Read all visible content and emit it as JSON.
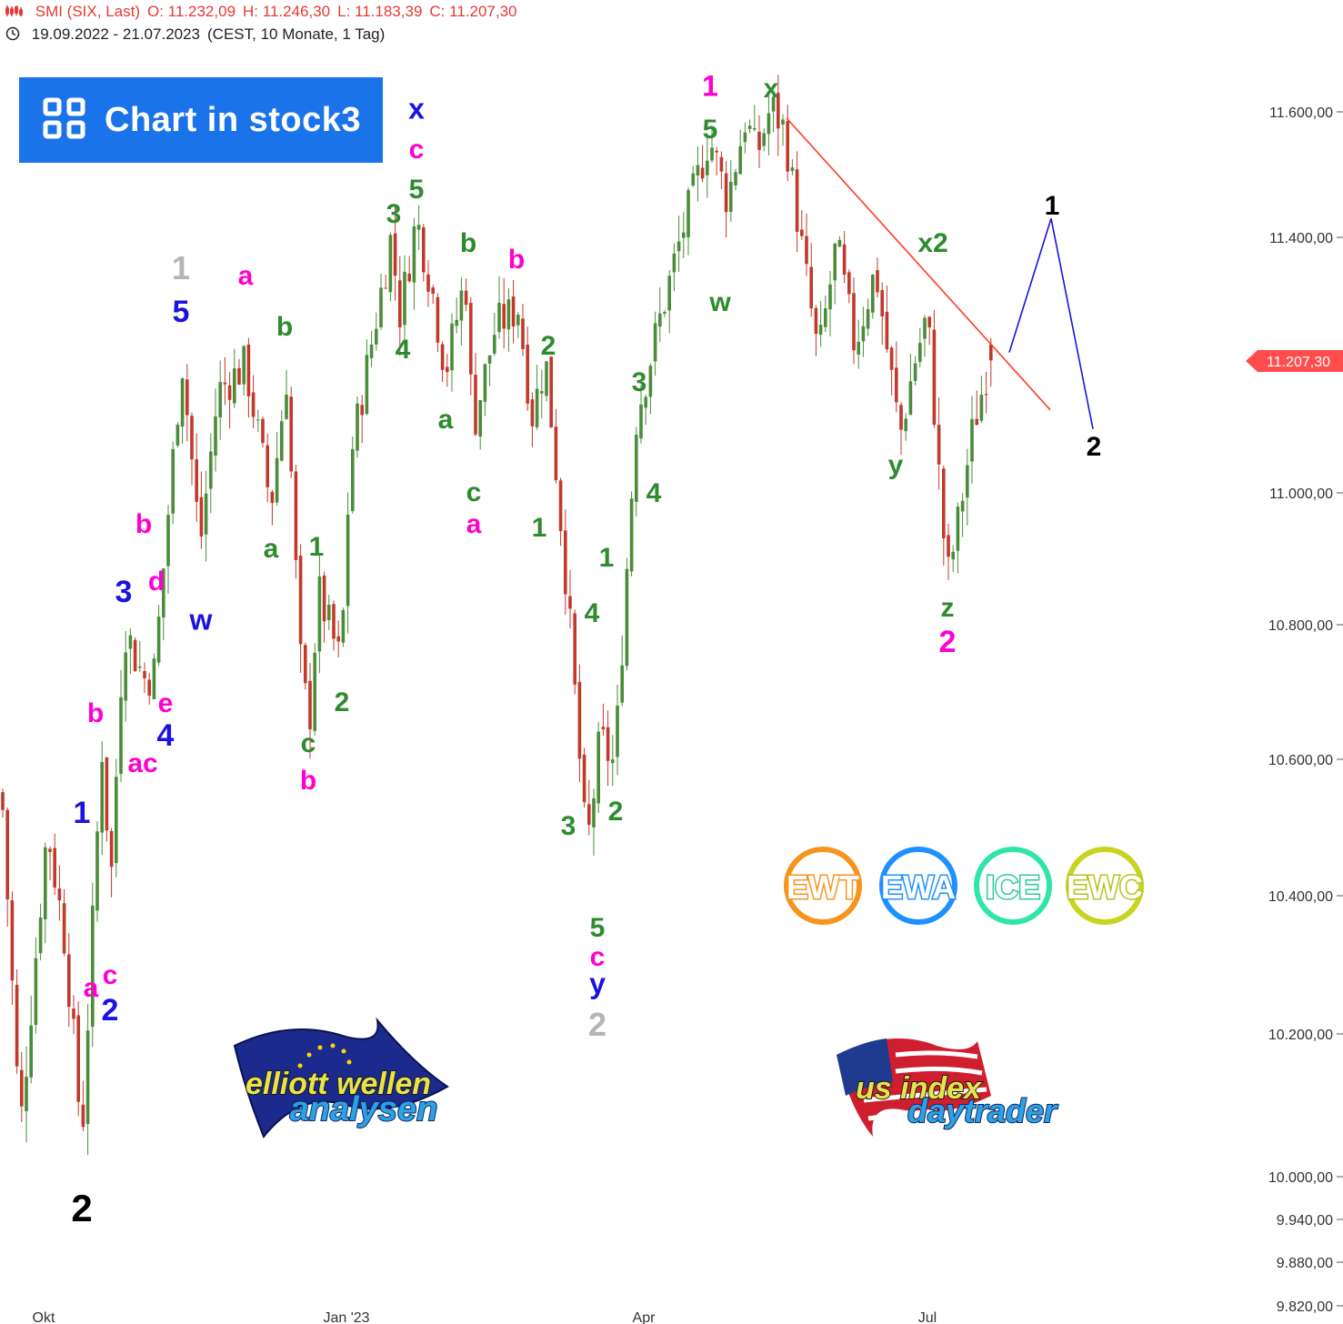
{
  "header": {
    "symbol": "SMI (SIX, Last)",
    "open": "O: 11.232,09",
    "high": "H: 11.246,30",
    "low": "L: 11.183,39",
    "close": "C: 11.207,30",
    "range": "19.09.2022 - 21.07.2023",
    "meta": "(CEST, 10 Monate, 1 Tag)"
  },
  "banner": {
    "label": "Chart in stock3"
  },
  "price_badge": "11.207,30",
  "badges": [
    "EWT",
    "EWA",
    "ICE",
    "EWC"
  ],
  "logos": {
    "left": [
      "elliott wellen",
      "analysen"
    ],
    "right": [
      "us index",
      "daytrader"
    ]
  },
  "colors": {
    "up": "#4a8c3a",
    "down": "#c0392b",
    "green": "#2e8b2e",
    "magenta": "#ff00d0",
    "blue": "#1a12e0",
    "grey": "#b4b4b4",
    "black": "#000000",
    "trend": "#ff3b1f",
    "projection": "#1a12e0",
    "badge_bg": "#ff4d4d"
  },
  "chart_data": {
    "type": "candlestick",
    "title": "SMI (SIX, Last)",
    "period": "19.09.2022 - 21.07.2023",
    "interval": "1 Tag",
    "last": 11207.3,
    "ohlc_last": {
      "open": 11232.09,
      "high": 11246.3,
      "low": 11183.39,
      "close": 11207.3
    },
    "y_axis": {
      "ticks": [
        11600,
        11400,
        11000,
        10800,
        10600,
        10400,
        10200,
        10000,
        9940,
        9880,
        9820
      ],
      "tick_labels": [
        "11.600,00",
        "11.400,00",
        "11.000,00",
        "10.800,00",
        "10.600,00",
        "10.400,00",
        "10.200,00",
        "10.000,00",
        "9.940,00",
        "9.880,00",
        "9.820,00"
      ]
    },
    "x_axis": {
      "tick_labels": [
        "Okt",
        "Jan '23",
        "Apr",
        "Jul"
      ]
    },
    "path": [
      [
        0,
        10600
      ],
      [
        22,
        10060
      ],
      [
        52,
        10500
      ],
      [
        72,
        10330
      ],
      [
        90,
        10050
      ],
      [
        112,
        10620
      ],
      [
        122,
        10420
      ],
      [
        136,
        10800
      ],
      [
        158,
        10720
      ],
      [
        170,
        10730
      ],
      [
        200,
        11210
      ],
      [
        220,
        10920
      ],
      [
        240,
        11160
      ],
      [
        270,
        11200
      ],
      [
        298,
        10980
      ],
      [
        315,
        11180
      ],
      [
        330,
        10750
      ],
      [
        340,
        10650
      ],
      [
        350,
        10850
      ],
      [
        375,
        10740
      ],
      [
        385,
        11050
      ],
      [
        408,
        11230
      ],
      [
        430,
        11400
      ],
      [
        440,
        11280
      ],
      [
        458,
        11430
      ],
      [
        475,
        11320
      ],
      [
        490,
        11190
      ],
      [
        512,
        11340
      ],
      [
        520,
        11100
      ],
      [
        545,
        11260
      ],
      [
        570,
        11290
      ],
      [
        585,
        11120
      ],
      [
        600,
        11210
      ],
      [
        612,
        11030
      ],
      [
        625,
        10830
      ],
      [
        645,
        10460
      ],
      [
        660,
        10630
      ],
      [
        676,
        10590
      ],
      [
        690,
        10900
      ],
      [
        700,
        11120
      ],
      [
        722,
        11250
      ],
      [
        745,
        11380
      ],
      [
        780,
        11560
      ],
      [
        800,
        11460
      ],
      [
        820,
        11590
      ],
      [
        832,
        11530
      ],
      [
        848,
        11610
      ],
      [
        863,
        11570
      ],
      [
        880,
        11400
      ],
      [
        900,
        11210
      ],
      [
        920,
        11390
      ],
      [
        940,
        11230
      ],
      [
        963,
        11350
      ],
      [
        975,
        11230
      ],
      [
        990,
        11090
      ],
      [
        1005,
        11200
      ],
      [
        1020,
        11280
      ],
      [
        1035,
        10980
      ],
      [
        1042,
        10870
      ],
      [
        1052,
        10940
      ],
      [
        1070,
        11100
      ],
      [
        1085,
        11190
      ],
      [
        1093,
        11207
      ]
    ],
    "trendline": [
      [
        865,
        11590
      ],
      [
        1155,
        11130
      ]
    ],
    "projection": [
      [
        1110,
        11220
      ],
      [
        1156,
        11430
      ],
      [
        1202,
        11100
      ]
    ],
    "wave_labels": [
      {
        "text": "2",
        "color": "black",
        "size": 42,
        "at": [
          90,
          1328
        ]
      },
      {
        "text": "1",
        "color": "blue",
        "size": 34,
        "at": [
          90,
          893
        ]
      },
      {
        "text": "a",
        "color": "magenta",
        "size": 30,
        "at": [
          100,
          1085
        ]
      },
      {
        "text": "c",
        "color": "magenta",
        "size": 30,
        "at": [
          121,
          1071
        ]
      },
      {
        "text": "2",
        "color": "blue",
        "size": 34,
        "at": [
          121,
          1110
        ]
      },
      {
        "text": "b",
        "color": "magenta",
        "size": 30,
        "at": [
          105,
          783
        ]
      },
      {
        "text": "ac",
        "color": "magenta",
        "size": 30,
        "at": [
          157,
          838
        ]
      },
      {
        "text": "3",
        "color": "blue",
        "size": 34,
        "at": [
          136,
          650
        ]
      },
      {
        "text": "b",
        "color": "magenta",
        "size": 30,
        "at": [
          158,
          575
        ]
      },
      {
        "text": "d",
        "color": "magenta",
        "size": 30,
        "at": [
          172,
          638
        ]
      },
      {
        "text": "e",
        "color": "magenta",
        "size": 30,
        "at": [
          182,
          772
        ]
      },
      {
        "text": "4",
        "color": "blue",
        "size": 34,
        "at": [
          182,
          808
        ]
      },
      {
        "text": "1",
        "color": "grey",
        "size": 36,
        "at": [
          199,
          294
        ]
      },
      {
        "text": "5",
        "color": "blue",
        "size": 34,
        "at": [
          199,
          342
        ]
      },
      {
        "text": "w",
        "color": "blue",
        "size": 32,
        "at": [
          221,
          681
        ]
      },
      {
        "text": "a",
        "color": "magenta",
        "size": 30,
        "at": [
          270,
          302
        ]
      },
      {
        "text": "b",
        "color": "green",
        "size": 30,
        "at": [
          313,
          358
        ]
      },
      {
        "text": "a",
        "color": "green",
        "size": 30,
        "at": [
          298,
          602
        ]
      },
      {
        "text": "1",
        "color": "green",
        "size": 30,
        "at": [
          348,
          600
        ]
      },
      {
        "text": "2",
        "color": "green",
        "size": 30,
        "at": [
          376,
          771
        ]
      },
      {
        "text": "c",
        "color": "green",
        "size": 30,
        "at": [
          339,
          816
        ]
      },
      {
        "text": "b",
        "color": "magenta",
        "size": 30,
        "at": [
          339,
          857
        ]
      },
      {
        "text": "x",
        "color": "blue",
        "size": 32,
        "at": [
          458,
          119
        ]
      },
      {
        "text": "c",
        "color": "magenta",
        "size": 30,
        "at": [
          458,
          163
        ]
      },
      {
        "text": "5",
        "color": "green",
        "size": 30,
        "at": [
          458,
          207
        ]
      },
      {
        "text": "3",
        "color": "green",
        "size": 30,
        "at": [
          433,
          234
        ]
      },
      {
        "text": "4",
        "color": "green",
        "size": 30,
        "at": [
          443,
          383
        ]
      },
      {
        "text": "b",
        "color": "green",
        "size": 30,
        "at": [
          515,
          266
        ]
      },
      {
        "text": "b",
        "color": "magenta",
        "size": 30,
        "at": [
          568,
          284
        ]
      },
      {
        "text": "a",
        "color": "green",
        "size": 30,
        "at": [
          490,
          460
        ]
      },
      {
        "text": "c",
        "color": "green",
        "size": 30,
        "at": [
          521,
          540
        ]
      },
      {
        "text": "a",
        "color": "magenta",
        "size": 30,
        "at": [
          521,
          575
        ]
      },
      {
        "text": "2",
        "color": "green",
        "size": 30,
        "at": [
          603,
          379
        ]
      },
      {
        "text": "1",
        "color": "green",
        "size": 30,
        "at": [
          593,
          579
        ]
      },
      {
        "text": "3",
        "color": "green",
        "size": 30,
        "at": [
          625,
          907
        ]
      },
      {
        "text": "4",
        "color": "green",
        "size": 30,
        "at": [
          651,
          673
        ]
      },
      {
        "text": "1",
        "color": "green",
        "size": 30,
        "at": [
          667,
          612
        ]
      },
      {
        "text": "2",
        "color": "green",
        "size": 30,
        "at": [
          677,
          891
        ]
      },
      {
        "text": "5",
        "color": "green",
        "size": 30,
        "at": [
          657,
          1019
        ]
      },
      {
        "text": "c",
        "color": "magenta",
        "size": 30,
        "at": [
          657,
          1051
        ]
      },
      {
        "text": "y",
        "color": "blue",
        "size": 32,
        "at": [
          657,
          1081
        ]
      },
      {
        "text": "2",
        "color": "grey",
        "size": 36,
        "at": [
          657,
          1126
        ]
      },
      {
        "text": "3",
        "color": "green",
        "size": 30,
        "at": [
          703,
          419
        ]
      },
      {
        "text": "4",
        "color": "green",
        "size": 30,
        "at": [
          719,
          541
        ]
      },
      {
        "text": "1",
        "color": "magenta",
        "size": 32,
        "at": [
          781,
          94
        ]
      },
      {
        "text": "5",
        "color": "green",
        "size": 30,
        "at": [
          781,
          141
        ]
      },
      {
        "text": "w",
        "color": "green",
        "size": 30,
        "at": [
          792,
          331
        ]
      },
      {
        "text": "x",
        "color": "green",
        "size": 30,
        "at": [
          848,
          96
        ]
      },
      {
        "text": "x2",
        "color": "green",
        "size": 30,
        "at": [
          1026,
          266
        ]
      },
      {
        "text": "y",
        "color": "green",
        "size": 30,
        "at": [
          985,
          510
        ]
      },
      {
        "text": "z",
        "color": "green",
        "size": 30,
        "at": [
          1042,
          667
        ]
      },
      {
        "text": "2",
        "color": "magenta",
        "size": 34,
        "at": [
          1042,
          705
        ]
      },
      {
        "text": "1",
        "color": "black",
        "size": 30,
        "at": [
          1157,
          225
        ]
      },
      {
        "text": "2",
        "color": "black",
        "size": 30,
        "at": [
          1203,
          490
        ]
      }
    ]
  }
}
